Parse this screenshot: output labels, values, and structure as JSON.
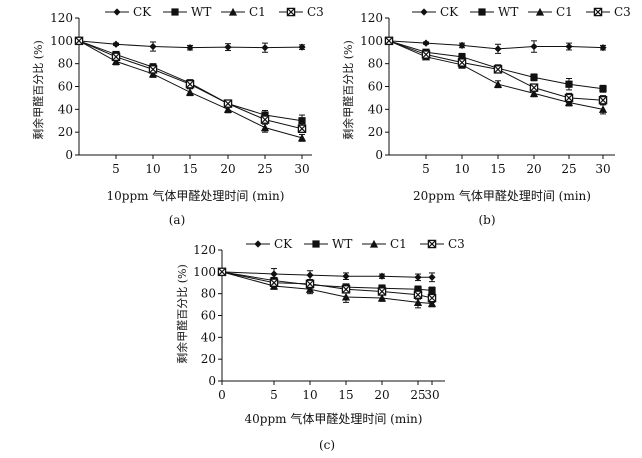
{
  "chart_data": [
    {
      "type": "line",
      "panel_label": "(a)",
      "xlabel": "10ppm 气体甲醛处理时间 (min)",
      "ylabel": "剩余甲醛百分比 (%)",
      "x": [
        0,
        5,
        10,
        15,
        20,
        25,
        30
      ],
      "xticks": [
        "5",
        "10",
        "15",
        "20",
        "25",
        "30"
      ],
      "ylim": [
        0,
        120
      ],
      "yticks": [
        "0",
        "20",
        "40",
        "60",
        "80",
        "100",
        "120"
      ],
      "grid": false,
      "legend_position": "top",
      "series": [
        {
          "name": "CK",
          "marker": "diamond",
          "values": [
            100,
            97,
            95,
            94,
            94.5,
            94,
            94.5
          ],
          "errors": [
            0,
            1,
            4,
            2,
            3,
            4,
            2
          ]
        },
        {
          "name": "WT",
          "marker": "square",
          "values": [
            100,
            88,
            77,
            63,
            45,
            35,
            30
          ],
          "errors": [
            0,
            2,
            3,
            3,
            3,
            4,
            5
          ]
        },
        {
          "name": "C1",
          "marker": "triangle",
          "values": [
            100,
            82,
            71,
            55,
            40,
            24,
            15
          ],
          "errors": [
            0,
            3,
            3,
            3,
            3,
            4,
            3
          ]
        },
        {
          "name": "C3",
          "marker": "x-square",
          "values": [
            100,
            86,
            75,
            62,
            45,
            31,
            23
          ],
          "errors": [
            0,
            2,
            3,
            3,
            2,
            4,
            2
          ]
        }
      ]
    },
    {
      "type": "line",
      "panel_label": "(b)",
      "xlabel": "20ppm 气体甲醛处理时间 (min)",
      "ylabel": "剩余甲醛百分比 (%)",
      "x": [
        0,
        5,
        10,
        15,
        20,
        25,
        30
      ],
      "xticks": [
        "5",
        "10",
        "15",
        "20",
        "25",
        "30"
      ],
      "ylim": [
        0,
        120
      ],
      "yticks": [
        "0",
        "20",
        "40",
        "60",
        "80",
        "100",
        "120"
      ],
      "grid": false,
      "legend_position": "top",
      "series": [
        {
          "name": "CK",
          "marker": "diamond",
          "values": [
            100,
            98,
            96,
            93,
            95,
            95,
            94
          ],
          "errors": [
            0,
            1,
            2,
            4,
            5,
            3,
            2
          ]
        },
        {
          "name": "WT",
          "marker": "square",
          "values": [
            100,
            90,
            86,
            76,
            68,
            62,
            58
          ],
          "errors": [
            0,
            2,
            3,
            3,
            3,
            5,
            3
          ]
        },
        {
          "name": "C1",
          "marker": "triangle",
          "values": [
            100,
            86,
            79,
            62,
            54,
            46,
            40
          ],
          "errors": [
            0,
            2,
            3,
            3,
            3,
            3,
            4
          ]
        },
        {
          "name": "C3",
          "marker": "x-square",
          "values": [
            100,
            88,
            81,
            75,
            59,
            50,
            48
          ],
          "errors": [
            0,
            2,
            3,
            3,
            3,
            4,
            4
          ]
        }
      ]
    },
    {
      "type": "line",
      "panel_label": "(c)",
      "xlabel": "40ppm 气体甲醛处理时间 (min)",
      "ylabel": "剩余甲醛百分比 (%)",
      "x": [
        0,
        5,
        10,
        15,
        20,
        25,
        30
      ],
      "xticks": [
        "0",
        "5",
        "10",
        "15",
        "20",
        "25",
        "30"
      ],
      "ylim": [
        0,
        120
      ],
      "yticks": [
        "0",
        "20",
        "40",
        "60",
        "80",
        "100",
        "120"
      ],
      "grid": false,
      "legend_position": "top",
      "series": [
        {
          "name": "CK",
          "marker": "diamond",
          "values": [
            100,
            98,
            97,
            96,
            96,
            95,
            95
          ],
          "errors": [
            0,
            5,
            4,
            3,
            2,
            3,
            4
          ]
        },
        {
          "name": "WT",
          "marker": "square",
          "values": [
            100,
            92,
            88,
            86,
            85,
            84,
            83
          ],
          "errors": [
            0,
            2,
            3,
            3,
            3,
            3,
            3
          ]
        },
        {
          "name": "C1",
          "marker": "triangle",
          "values": [
            100,
            87,
            84,
            77,
            76,
            72,
            71
          ],
          "errors": [
            0,
            3,
            4,
            5,
            3,
            5,
            3
          ]
        },
        {
          "name": "C3",
          "marker": "x-square",
          "values": [
            100,
            90,
            89,
            84,
            82,
            79,
            76
          ],
          "errors": [
            0,
            3,
            3,
            3,
            3,
            4,
            4
          ]
        }
      ]
    }
  ]
}
